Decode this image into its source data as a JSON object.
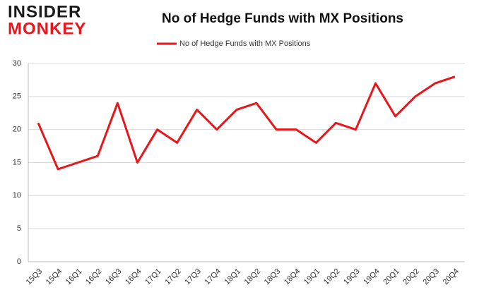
{
  "logo": {
    "line1": "INSIDER",
    "line2": "MONKEY"
  },
  "chart_data": {
    "type": "line",
    "title": "No of Hedge Funds with MX Positions",
    "categories": [
      "15Q3",
      "15Q4",
      "16Q1",
      "16Q2",
      "16Q3",
      "16Q4",
      "17Q1",
      "17Q2",
      "17Q3",
      "17Q4",
      "18Q1",
      "18Q2",
      "18Q3",
      "18Q4",
      "19Q1",
      "19Q2",
      "19Q3",
      "19Q4",
      "20Q1",
      "20Q2",
      "20Q3",
      "20Q4"
    ],
    "series": [
      {
        "name": "No of Hedge Funds with MX Positions",
        "color": "#e8161b",
        "values": [
          21,
          14,
          15,
          16,
          24,
          15,
          20,
          18,
          23,
          20,
          23,
          24,
          20,
          20,
          18,
          21,
          20,
          27,
          22,
          25,
          27,
          28
        ]
      }
    ],
    "ylim": [
      0,
      30
    ],
    "yticks": [
      0,
      5,
      10,
      15,
      20,
      25,
      30
    ],
    "grid": true,
    "legend": "top"
  }
}
